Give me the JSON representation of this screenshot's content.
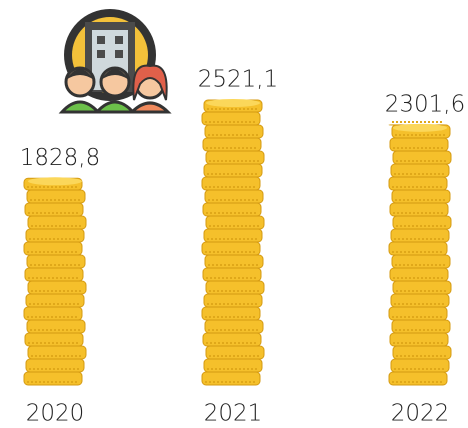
{
  "chart_data": {
    "type": "bar",
    "categories": [
      "2020",
      "2021",
      "2022"
    ],
    "values": [
      1828.8,
      2521.1,
      2301.6
    ],
    "value_labels": [
      "1828,8",
      "2521,1",
      "2301,6"
    ],
    "color": "#f5c02b"
  }
}
